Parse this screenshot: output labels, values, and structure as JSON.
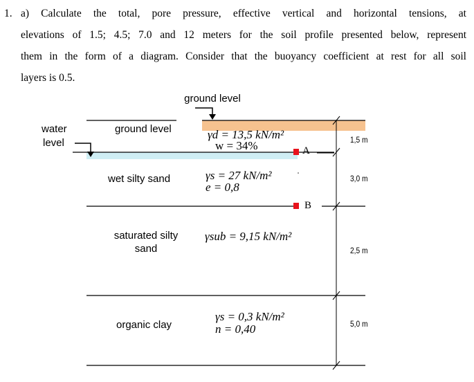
{
  "problem": {
    "number": "1.",
    "line1": "a) Calculate the total, pore pressure, effective vertical and horizontal tensions, at",
    "line2": "elevations of 1.5; 4.5; 7.0 and 12 meters for the soil profile presented below, represent",
    "line3": "them in the form of a diagram. Consider that the buoyancy coefficient at rest for all soil",
    "line4": "layers is 0.5."
  },
  "diagram": {
    "ground_level_top": "ground level",
    "water_level_line1": "water",
    "water_level_line2": "level",
    "ground_level_inside": "ground level",
    "layers": [
      {
        "name": "",
        "formula1": "γd = 13,5 kN/m²",
        "formula2": "w = 34%",
        "thickness": "1,5 m"
      },
      {
        "name": "wet silty sand",
        "formula1": "γs = 27 kN/m²",
        "formula2": "e = 0,8",
        "thickness": "3,0 m"
      },
      {
        "name1": "saturated silty",
        "name2": "sand",
        "formula1": "γsub = 9,15 kN/m²",
        "thickness": "2,5 m"
      },
      {
        "name": "organic clay",
        "formula1": "γs = 0,3 kN/m²",
        "formula2": "n = 0,40",
        "thickness": "5,0 m"
      }
    ],
    "point_a": "A",
    "point_b": "B",
    "colors": {
      "surface_layer": "#f6c28f",
      "water_band": "#cfeef4",
      "point_marker": "#e8121c"
    }
  }
}
